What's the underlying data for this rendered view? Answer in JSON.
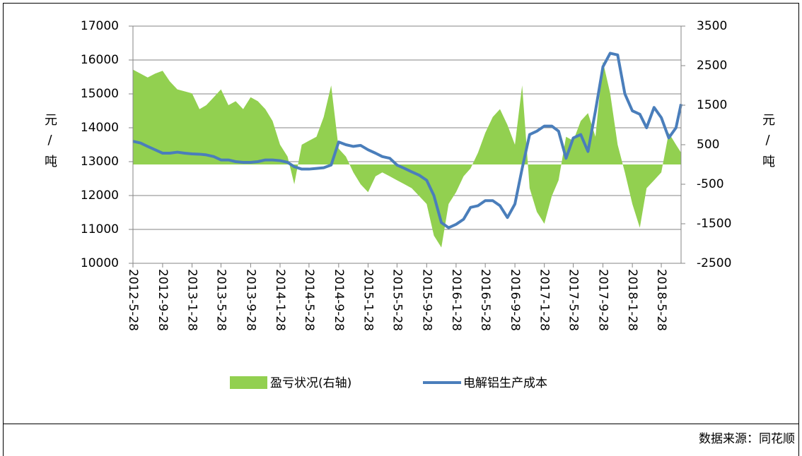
{
  "chart_data": {
    "type": "bar-area-line",
    "ylabel": "元/吨",
    "y2label": "元/吨",
    "source": "数据来源：同花顺",
    "xlim": [
      "2012-5-28",
      "2018-8-18"
    ],
    "xticks": [
      "2012-5-28",
      "2012-9-28",
      "2013-1-28",
      "2013-5-28",
      "2013-9-28",
      "2014-1-28",
      "2014-5-28",
      "2014-9-28",
      "2015-1-28",
      "2015-5-28",
      "2015-9-28",
      "2016-1-28",
      "2016-5-28",
      "2016-9-28",
      "2017-1-28",
      "2017-5-28",
      "2017-9-28",
      "2018-1-28",
      "2018-5-28"
    ],
    "ylim": [
      10000,
      17000
    ],
    "yticks": [
      10000,
      11000,
      12000,
      13000,
      14000,
      15000,
      16000,
      17000
    ],
    "y2lim": [
      -2500,
      3500
    ],
    "y2ticks": [
      -2500,
      -1500,
      -500,
      500,
      1500,
      2500,
      3500
    ],
    "y2tick_negative_color": "#ff0000",
    "grid": true,
    "x": [
      "2012-5-28",
      "2012-6-28",
      "2012-7-28",
      "2012-8-28",
      "2012-9-28",
      "2012-10-28",
      "2012-11-28",
      "2012-12-28",
      "2013-1-28",
      "2013-2-28",
      "2013-3-28",
      "2013-4-28",
      "2013-5-28",
      "2013-6-28",
      "2013-7-28",
      "2013-8-28",
      "2013-9-28",
      "2013-10-28",
      "2013-11-28",
      "2013-12-28",
      "2014-1-28",
      "2014-2-28",
      "2014-3-28",
      "2014-4-28",
      "2014-5-28",
      "2014-6-28",
      "2014-7-28",
      "2014-8-28",
      "2014-9-28",
      "2014-10-28",
      "2014-11-28",
      "2014-12-28",
      "2015-1-28",
      "2015-2-28",
      "2015-3-28",
      "2015-4-28",
      "2015-5-28",
      "2015-6-28",
      "2015-7-28",
      "2015-8-28",
      "2015-9-28",
      "2015-10-28",
      "2015-11-28",
      "2015-12-28",
      "2016-1-28",
      "2016-2-28",
      "2016-3-28",
      "2016-4-28",
      "2016-5-28",
      "2016-6-28",
      "2016-7-28",
      "2016-8-28",
      "2016-9-28",
      "2016-10-28",
      "2016-11-28",
      "2016-12-28",
      "2017-1-28",
      "2017-2-28",
      "2017-3-28",
      "2017-4-28",
      "2017-5-28",
      "2017-6-28",
      "2017-7-28",
      "2017-8-28",
      "2017-9-28",
      "2017-10-28",
      "2017-11-28",
      "2017-12-28",
      "2018-1-28",
      "2018-2-28",
      "2018-3-28",
      "2018-4-28",
      "2018-5-28",
      "2018-6-28",
      "2018-7-28",
      "2018-8-18"
    ],
    "series": [
      {
        "name": "盈亏状况(右轴)",
        "color": "#92d050",
        "axis": "y2",
        "kind": "area",
        "values": [
          2400,
          2300,
          2200,
          2300,
          2370,
          2100,
          1900,
          1850,
          1800,
          1400,
          1500,
          1700,
          1900,
          1500,
          1600,
          1400,
          1700,
          1600,
          1400,
          1100,
          500,
          200,
          -500,
          500,
          600,
          700,
          1200,
          2000,
          400,
          200,
          -200,
          -500,
          -700,
          -300,
          -200,
          -300,
          -400,
          -500,
          -600,
          -800,
          -1000,
          -1800,
          -2100,
          -1000,
          -700,
          -300,
          -100,
          300,
          800,
          1200,
          1400,
          1000,
          500,
          2000,
          -600,
          -1200,
          -1500,
          -800,
          -400,
          700,
          600,
          1100,
          1300,
          700,
          2600,
          1800,
          500,
          -200,
          -1000,
          -1600,
          -600,
          -400,
          -200,
          800,
          500,
          300
        ]
      },
      {
        "name": "电解铝生产成本",
        "color": "#4a7ebb",
        "axis": "y",
        "kind": "line",
        "values": [
          13600,
          13550,
          13450,
          13350,
          13250,
          13250,
          13280,
          13250,
          13230,
          13220,
          13200,
          13150,
          13050,
          13050,
          13000,
          12980,
          12980,
          13000,
          13050,
          13050,
          13030,
          12980,
          12850,
          12780,
          12780,
          12800,
          12820,
          12900,
          13580,
          13500,
          13450,
          13480,
          13350,
          13250,
          13150,
          13100,
          12900,
          12800,
          12700,
          12600,
          12450,
          12000,
          11200,
          11050,
          11150,
          11300,
          11650,
          11700,
          11850,
          11850,
          11700,
          11350,
          11750,
          12800,
          13800,
          13900,
          14050,
          14050,
          13900,
          13100,
          13700,
          13800,
          13300,
          14500,
          15800,
          16200,
          16150,
          15000,
          14500,
          14400,
          14000,
          14600,
          14300,
          13700,
          14000,
          14700
        ]
      }
    ]
  }
}
